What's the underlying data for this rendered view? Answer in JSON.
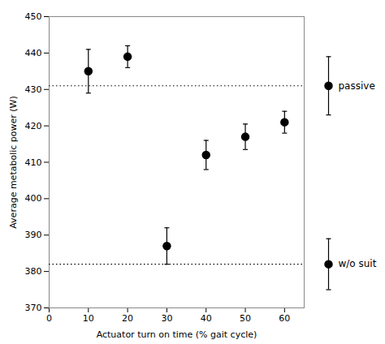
{
  "chart_data": {
    "type": "scatter",
    "xlabel": "Actuator turn on time (% gait cycle)",
    "ylabel": "Average metabolic power (W)",
    "x": [
      10,
      20,
      30,
      40,
      50,
      60
    ],
    "values": [
      435,
      439,
      387,
      412,
      417,
      421
    ],
    "error_lo": [
      6,
      3,
      5,
      4,
      3.5,
      3
    ],
    "error_hi": [
      6,
      3,
      5,
      4,
      3.5,
      3
    ],
    "color": "black",
    "marker": "circle",
    "grid": false,
    "xlim": [
      0,
      65
    ],
    "ylim": [
      370,
      450
    ],
    "xticks": [
      0,
      10,
      20,
      30,
      40,
      50,
      60
    ],
    "yticks": [
      370,
      380,
      390,
      400,
      410,
      420,
      430,
      440,
      450
    ],
    "annotations": [
      {
        "text": "passive",
        "y": 431,
        "error_lo": 8,
        "error_hi": 8,
        "line_style": "dotted",
        "color": "black"
      },
      {
        "text": "w/o suit",
        "y": 382,
        "error_lo": 7,
        "error_hi": 7,
        "line_style": "dotted",
        "color": "black"
      }
    ]
  }
}
